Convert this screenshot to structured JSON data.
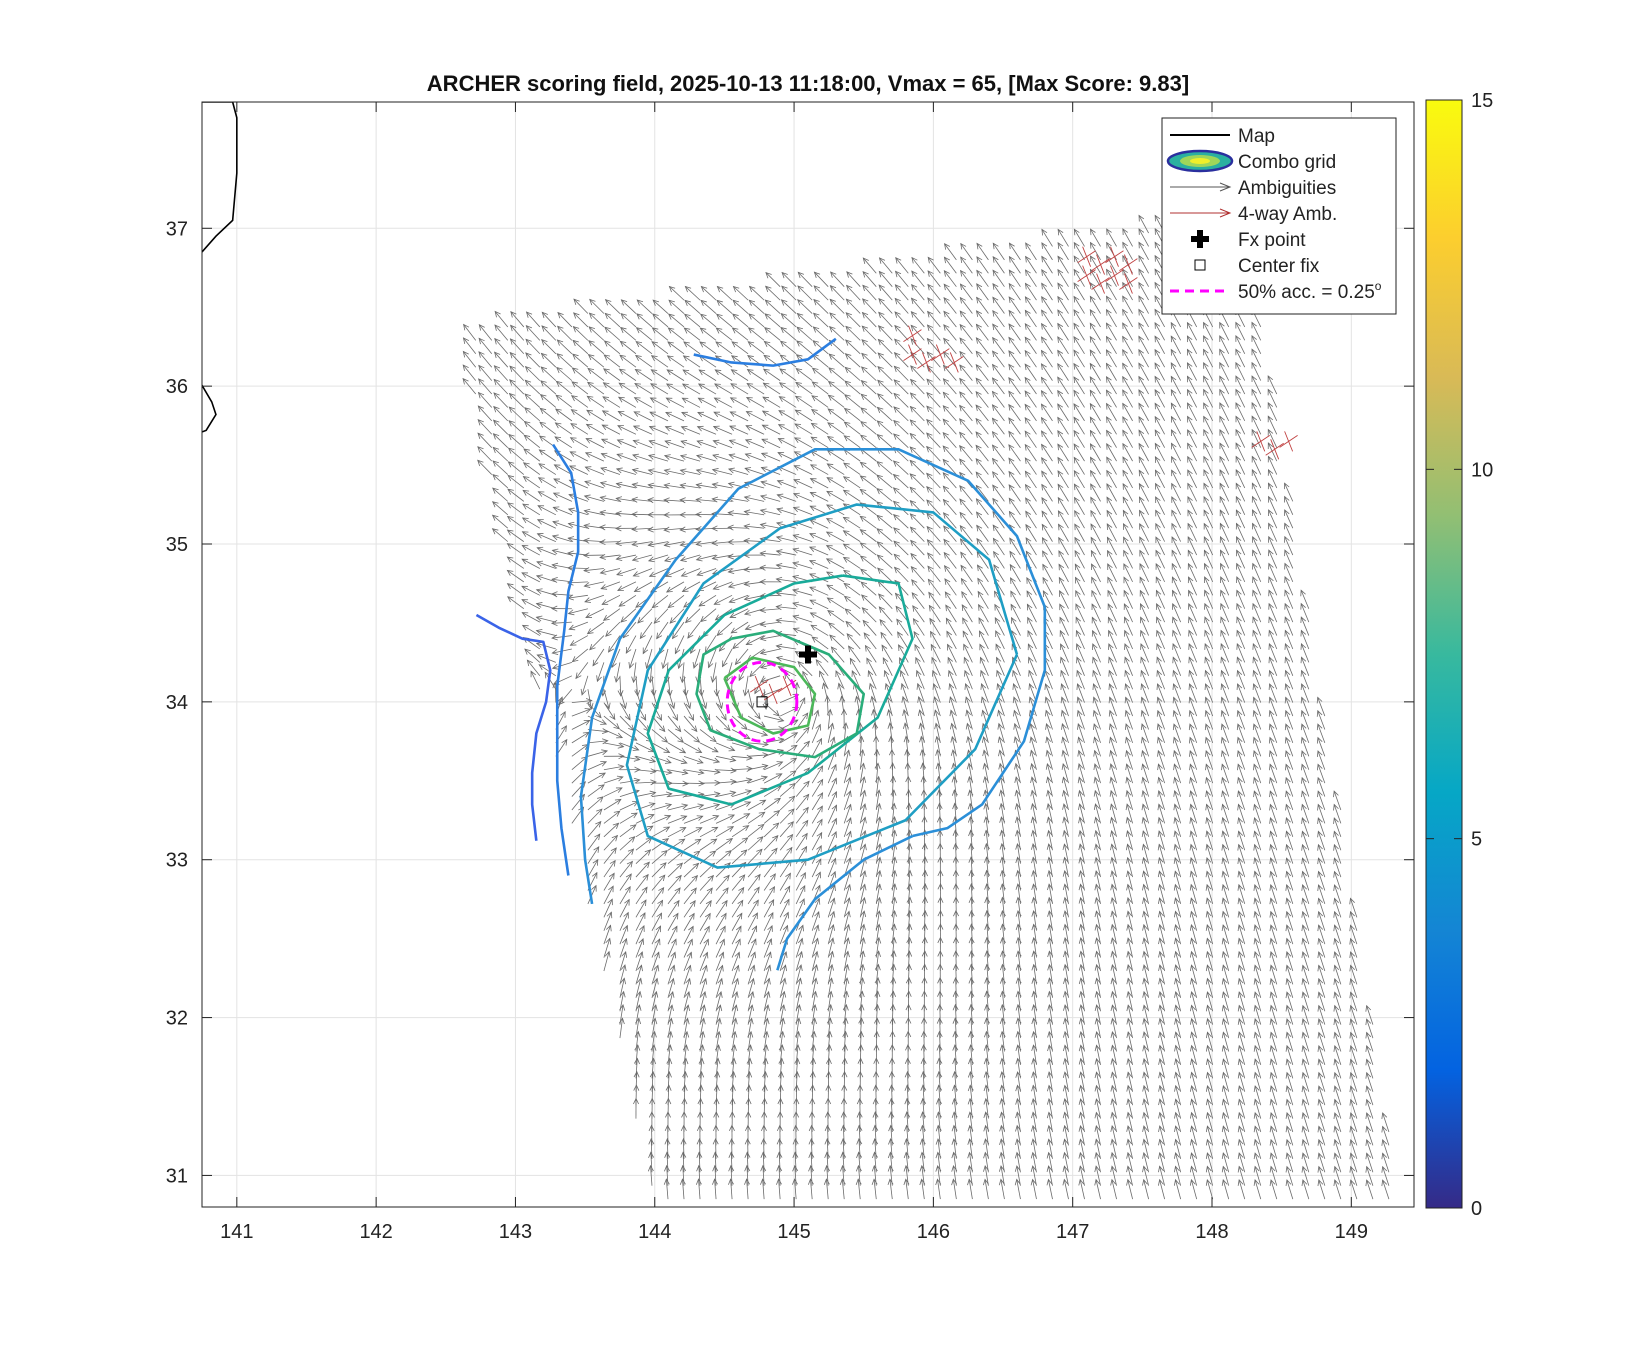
{
  "chart_data": {
    "type": "scatter",
    "title": "ARCHER scoring field, 2025-10-13 11:18:00, Vmax = 65, [Max Score: 9.83]",
    "xlabel": "",
    "ylabel": "",
    "xlim": [
      140.75,
      149.45
    ],
    "ylim": [
      30.8,
      37.8
    ],
    "xticks": [
      141,
      142,
      143,
      144,
      145,
      146,
      147,
      148,
      149
    ],
    "yticks": [
      31,
      32,
      33,
      34,
      35,
      36,
      37
    ],
    "grid": true,
    "colorbar": {
      "range": [
        0,
        15
      ],
      "ticks": [
        0,
        5,
        10,
        15
      ],
      "colormap": "parula"
    },
    "legend": {
      "placement": "top-right",
      "entries": [
        {
          "label": "Map",
          "style": "line",
          "color": "#000000"
        },
        {
          "label": "Combo grid",
          "style": "contour",
          "color": "#2a2f9e"
        },
        {
          "label": "Ambiguities",
          "style": "arrow",
          "color": "#555555"
        },
        {
          "label": "4-way Amb.",
          "style": "arrow",
          "color": "#b03030"
        },
        {
          "label": "Fx point",
          "style": "plus",
          "color": "#000000"
        },
        {
          "label": "Center fix",
          "style": "square",
          "color": "#000000"
        },
        {
          "label": "50% acc. = 0.25",
          "superscript": "o",
          "style": "dashed",
          "color": "#ff00ff"
        }
      ]
    },
    "points": {
      "fx_point": {
        "x": 145.1,
        "y": 34.3
      },
      "center_fix": {
        "x": 144.77,
        "y": 34.0
      }
    },
    "acc_circle_radius_deg": 0.25,
    "contours": [
      {
        "level": 2.0,
        "color": "#3a63e8",
        "points": [
          [
            142.72,
            34.55
          ],
          [
            142.88,
            34.47
          ],
          [
            143.05,
            34.4
          ],
          [
            143.2,
            34.38
          ],
          [
            143.25,
            34.2
          ],
          [
            143.22,
            34.0
          ],
          [
            143.15,
            33.8
          ],
          [
            143.12,
            33.55
          ],
          [
            143.12,
            33.35
          ],
          [
            143.15,
            33.12
          ]
        ]
      },
      {
        "level": 4.0,
        "color": "#2b7ee0",
        "points": [
          [
            144.28,
            36.2
          ],
          [
            144.55,
            36.15
          ],
          [
            144.85,
            36.13
          ],
          [
            145.1,
            36.17
          ],
          [
            145.3,
            36.3
          ]
        ]
      },
      {
        "level": 4.0,
        "color": "#2b7ee0",
        "points": [
          [
            143.27,
            35.63
          ],
          [
            143.4,
            35.45
          ],
          [
            143.45,
            35.2
          ],
          [
            143.45,
            34.95
          ],
          [
            143.38,
            34.7
          ],
          [
            143.35,
            34.45
          ],
          [
            143.3,
            34.1
          ],
          [
            143.3,
            33.8
          ],
          [
            143.3,
            33.5
          ],
          [
            143.33,
            33.2
          ],
          [
            143.38,
            32.9
          ]
        ]
      },
      {
        "level": 4.5,
        "color": "#2b8fd8",
        "points": [
          [
            145.85,
            33.15
          ],
          [
            146.1,
            33.2
          ],
          [
            146.35,
            33.35
          ],
          [
            146.65,
            33.75
          ],
          [
            146.8,
            34.2
          ],
          [
            146.8,
            34.6
          ],
          [
            146.6,
            35.05
          ],
          [
            146.25,
            35.4
          ],
          [
            145.75,
            35.6
          ],
          [
            145.15,
            35.6
          ],
          [
            144.6,
            35.35
          ],
          [
            144.15,
            34.9
          ],
          [
            143.75,
            34.4
          ],
          [
            143.55,
            33.9
          ],
          [
            143.47,
            33.4
          ],
          [
            143.5,
            33.0
          ],
          [
            143.55,
            32.72
          ]
        ]
      },
      {
        "level": 4.5,
        "color": "#2b8fd8",
        "points": [
          [
            145.85,
            33.15
          ],
          [
            145.5,
            33.0
          ],
          [
            145.15,
            32.75
          ],
          [
            144.95,
            32.5
          ],
          [
            144.88,
            32.3
          ]
        ]
      },
      {
        "level": 5.5,
        "color": "#1f9ec4",
        "points": [
          [
            146.6,
            34.3
          ],
          [
            146.4,
            34.9
          ],
          [
            146.0,
            35.2
          ],
          [
            145.45,
            35.25
          ],
          [
            144.9,
            35.1
          ],
          [
            144.35,
            34.75
          ],
          [
            143.95,
            34.2
          ],
          [
            143.8,
            33.6
          ],
          [
            143.95,
            33.15
          ],
          [
            144.45,
            32.95
          ],
          [
            145.1,
            33.0
          ],
          [
            145.8,
            33.25
          ],
          [
            146.3,
            33.7
          ],
          [
            146.6,
            34.3
          ]
        ]
      },
      {
        "level": 6.5,
        "color": "#19ab9a",
        "points": [
          [
            145.35,
            34.8
          ],
          [
            145.0,
            34.75
          ],
          [
            144.5,
            34.55
          ],
          [
            144.1,
            34.2
          ],
          [
            143.95,
            33.8
          ],
          [
            144.1,
            33.45
          ],
          [
            144.55,
            33.35
          ],
          [
            145.1,
            33.55
          ],
          [
            145.6,
            33.9
          ],
          [
            145.85,
            34.4
          ],
          [
            145.75,
            34.75
          ],
          [
            145.35,
            34.8
          ]
        ]
      },
      {
        "level": 7.5,
        "color": "#2aad7a",
        "points": [
          [
            144.55,
            34.4
          ],
          [
            144.85,
            34.45
          ],
          [
            145.25,
            34.3
          ],
          [
            145.5,
            34.05
          ],
          [
            145.45,
            33.8
          ],
          [
            145.15,
            33.65
          ],
          [
            144.75,
            33.7
          ],
          [
            144.4,
            33.82
          ],
          [
            144.3,
            34.05
          ],
          [
            144.35,
            34.3
          ],
          [
            144.55,
            34.4
          ]
        ]
      },
      {
        "level": 8.5,
        "color": "#4cb85a",
        "points": [
          [
            144.5,
            34.15
          ],
          [
            144.7,
            34.28
          ],
          [
            145.0,
            34.22
          ],
          [
            145.15,
            34.05
          ],
          [
            145.1,
            33.85
          ],
          [
            144.85,
            33.8
          ],
          [
            144.62,
            33.9
          ],
          [
            144.5,
            34.15
          ]
        ]
      }
    ]
  }
}
